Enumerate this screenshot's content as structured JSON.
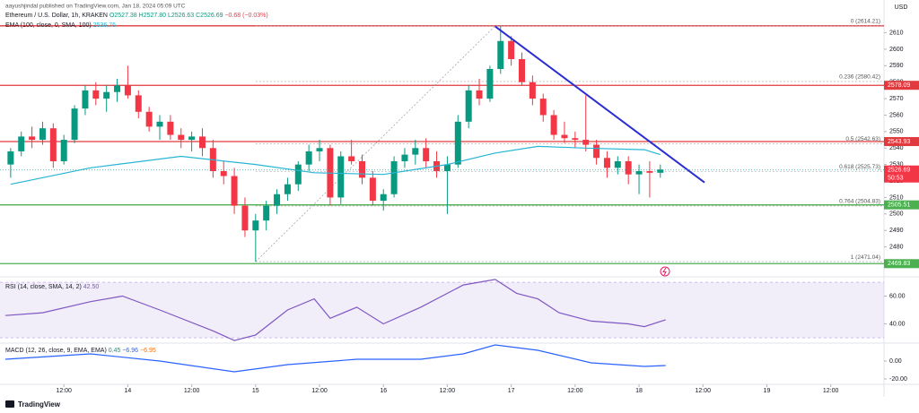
{
  "chart_data": [
    {
      "type": "candlestick",
      "subtitle": "aayushjindal published on TradingView.com, Jan 18, 2024 05:09 UTC",
      "title": "Ethereum / U.S. Dollar, 1h, KRAKEN",
      "legend_values": [
        "O2527.38",
        "H2527.80",
        "L2526.63",
        "C2526.69",
        "−0.68 (−0.03%)"
      ],
      "currency": "USD",
      "up_color": "#089981",
      "down_color": "#f23645",
      "x": [
        -22,
        -20,
        -18,
        -16,
        -14,
        -12,
        -10,
        -8,
        -6,
        -4,
        -2,
        0,
        2,
        4,
        6,
        8,
        10,
        12,
        14,
        16,
        18,
        20,
        22,
        24,
        26,
        28,
        30,
        32,
        34,
        36,
        38,
        40,
        42,
        44,
        46,
        48,
        50,
        52,
        54,
        56,
        58,
        60,
        62,
        64,
        66,
        68,
        70,
        72,
        74,
        76,
        78,
        80,
        82,
        84,
        86,
        88,
        90,
        92,
        94,
        96,
        98,
        100
      ],
      "open": [
        2530,
        2538,
        2547,
        2545,
        2552,
        2532,
        2545,
        2564,
        2575,
        2570,
        2574,
        2578,
        2572,
        2562,
        2553,
        2556,
        2548,
        2545,
        2547,
        2540,
        2526,
        2523,
        2505,
        2490,
        2496,
        2505,
        2512,
        2518,
        2530,
        2538,
        2540,
        2510,
        2535,
        2532,
        2522,
        2508,
        2512,
        2532,
        2536,
        2540,
        2532,
        2526,
        2530,
        2556,
        2575,
        2570,
        2588,
        2605,
        2594,
        2580,
        2570,
        2560,
        2548,
        2546,
        2545,
        2542,
        2534,
        2528,
        2532,
        2524,
        2526,
        2525
      ],
      "high": [
        2540,
        2550,
        2553,
        2556,
        2555,
        2548,
        2566,
        2578,
        2580,
        2578,
        2582,
        2590,
        2575,
        2565,
        2560,
        2560,
        2552,
        2550,
        2552,
        2545,
        2532,
        2528,
        2510,
        2500,
        2508,
        2515,
        2522,
        2532,
        2542,
        2545,
        2542,
        2538,
        2545,
        2536,
        2526,
        2515,
        2535,
        2540,
        2545,
        2546,
        2538,
        2535,
        2560,
        2578,
        2582,
        2590,
        2614,
        2608,
        2598,
        2584,
        2573,
        2563,
        2556,
        2550,
        2572,
        2545,
        2538,
        2535,
        2535,
        2530,
        2532,
        2530
      ],
      "low": [
        2522,
        2535,
        2540,
        2542,
        2528,
        2530,
        2543,
        2560,
        2566,
        2562,
        2568,
        2570,
        2558,
        2550,
        2545,
        2545,
        2540,
        2538,
        2535,
        2522,
        2518,
        2500,
        2486,
        2471,
        2490,
        2500,
        2508,
        2514,
        2526,
        2532,
        2505,
        2506,
        2530,
        2518,
        2505,
        2502,
        2510,
        2528,
        2530,
        2528,
        2522,
        2500,
        2528,
        2552,
        2566,
        2568,
        2585,
        2590,
        2578,
        2566,
        2556,
        2545,
        2543,
        2540,
        2538,
        2530,
        2522,
        2524,
        2518,
        2512,
        2510,
        2522
      ],
      "close": [
        2538,
        2547,
        2545,
        2552,
        2532,
        2545,
        2564,
        2575,
        2570,
        2574,
        2578,
        2572,
        2562,
        2553,
        2556,
        2548,
        2545,
        2547,
        2540,
        2526,
        2523,
        2505,
        2490,
        2496,
        2505,
        2512,
        2518,
        2530,
        2538,
        2540,
        2510,
        2535,
        2532,
        2522,
        2508,
        2512,
        2532,
        2536,
        2540,
        2532,
        2526,
        2530,
        2556,
        2575,
        2570,
        2588,
        2605,
        2594,
        2580,
        2570,
        2560,
        2548,
        2546,
        2545,
        2542,
        2534,
        2528,
        2532,
        2524,
        2526,
        2525,
        2527
      ],
      "series": [
        {
          "name": "EMA (100, close, 0, SMA, 100)",
          "value_label": "2536.76",
          "color": "#26b5d4",
          "x": [
            -22,
            -7,
            10,
            24,
            35,
            48,
            60,
            69,
            77,
            86,
            97,
            100
          ],
          "values": [
            2518,
            2528,
            2535,
            2530,
            2525,
            2524,
            2530,
            2537,
            2541,
            2540,
            2539,
            2536
          ]
        }
      ],
      "levels": [
        {
          "value": 2614.21,
          "color": "#e03a3e"
        },
        {
          "value": 2578.09,
          "color": "#e03a3e"
        },
        {
          "value": 2543.93,
          "color": "#e03a3e"
        },
        {
          "value": 2505.51,
          "color": "#4caf50"
        },
        {
          "value": 2469.83,
          "color": "#4caf50"
        }
      ],
      "fib_x": [
        24,
        69
      ],
      "fib": [
        {
          "value": 2614.21,
          "label": "0 (2614.21)"
        },
        {
          "value": 2580.42,
          "label": "0.236 (2580.42)"
        },
        {
          "value": 2542.63,
          "label": "0.5 (2542.63)"
        },
        {
          "value": 2525.73,
          "label": "0.618 (2525.73)"
        },
        {
          "value": 2504.83,
          "label": "0.764 (2504.83)"
        },
        {
          "value": 2471.04,
          "label": "1 (2471.04)"
        }
      ],
      "trendline": {
        "x": [
          69,
          108.3
        ],
        "values": [
          2613.8,
          2519.1
        ],
        "color": "#2a2ed0"
      },
      "last_price": 2526.69,
      "countdown": "50:53",
      "xlim": [
        -24,
        142
      ],
      "xticks": [
        {
          "value": -12,
          "label": "12:00"
        },
        {
          "value": 0,
          "label": "14"
        },
        {
          "value": 12,
          "label": "12:00"
        },
        {
          "value": 24,
          "label": "15"
        },
        {
          "value": 36,
          "label": "12:00"
        },
        {
          "value": 48,
          "label": "16"
        },
        {
          "value": 60,
          "label": "12:00"
        },
        {
          "value": 72,
          "label": "17"
        },
        {
          "value": 84,
          "label": "12:00"
        },
        {
          "value": 96,
          "label": "18"
        },
        {
          "value": 108,
          "label": "12:00"
        },
        {
          "value": 120,
          "label": "19"
        },
        {
          "value": 132,
          "label": "12:00"
        }
      ],
      "ylim": [
        2464,
        2619
      ],
      "yticks": [
        2480,
        2490,
        2500,
        2510,
        2520,
        2530,
        2540,
        2550,
        2560,
        2570,
        2580,
        2590,
        2600,
        2610
      ]
    },
    {
      "type": "line",
      "legend_values": [
        "42.50"
      ],
      "band": [
        30,
        70
      ],
      "series": [
        {
          "name": "RSI (14, close, SMA, 14, 2)",
          "color": "#7e57c2",
          "x": [
            -23,
            -16,
            -7,
            -1,
            6,
            16,
            20,
            24,
            30,
            35,
            38,
            43,
            48,
            55,
            63,
            69,
            73,
            77,
            81,
            87,
            94,
            97,
            101
          ],
          "values": [
            46,
            48,
            56,
            60,
            50,
            35,
            28,
            32,
            50,
            58,
            44,
            52,
            40,
            52,
            68,
            72,
            62,
            58,
            48,
            42,
            40,
            38,
            43
          ]
        }
      ],
      "xlim": [
        -24,
        142
      ],
      "ylim": [
        26.8,
        71.3
      ],
      "yticks": [
        {
          "value": 60,
          "label": "60.00"
        },
        {
          "value": 40,
          "label": "40.00"
        }
      ]
    },
    {
      "type": "line",
      "legend_values": [
        "0.45",
        "−6.96",
        "−6.95"
      ],
      "series": [
        {
          "name": "MACD (12, 26, close, 9, EMA, EMA)",
          "color": "#2962ff",
          "x": [
            -23,
            -7,
            6,
            20,
            30,
            43,
            55,
            63,
            69,
            77,
            87,
            97,
            101
          ],
          "values": [
            2,
            8,
            0,
            -12,
            -4,
            2,
            2,
            8,
            18,
            12,
            -2,
            -6,
            -5
          ]
        }
      ],
      "xlim": [
        -24,
        142
      ],
      "ylim": [
        -25,
        18
      ],
      "yticks": [
        {
          "value": 0,
          "label": "0.00"
        },
        {
          "value": -20,
          "label": "-20.00"
        }
      ]
    }
  ]
}
